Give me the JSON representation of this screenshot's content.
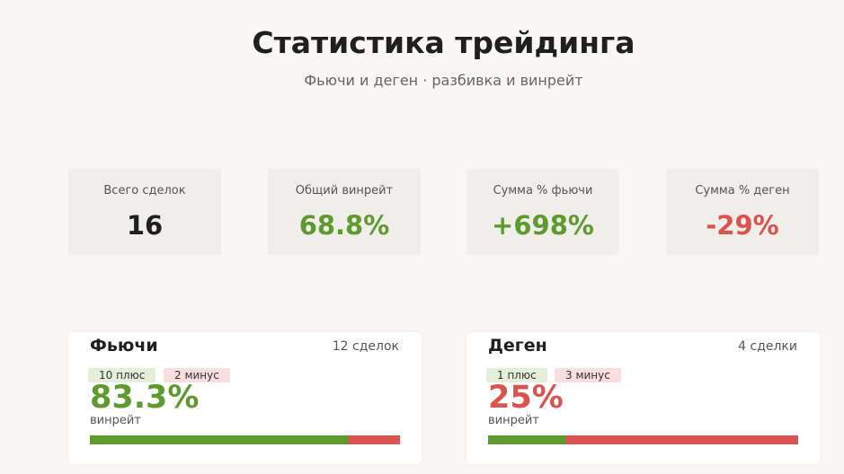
{
  "header": {
    "title": "Статистика трейдинга",
    "subtitle": "Фьючи и деген · разбивка и винрейт"
  },
  "stats": [
    {
      "label": "Всего сделок",
      "value": "16"
    },
    {
      "label": "Общий винрейт",
      "value": "68.8%"
    },
    {
      "label": "Сумма % фьючи",
      "value": "+698%"
    },
    {
      "label": "Сумма % деген",
      "value": "-29%"
    }
  ],
  "panels": [
    {
      "name": "Фьючи",
      "count": "12 сделок",
      "wins": {
        "value": 10,
        "label": "10 плюс"
      },
      "losses": {
        "value": 2,
        "label": "2 минус"
      },
      "winrate": "83.3%",
      "winrate_label": "винрейт"
    },
    {
      "name": "Деген",
      "count": "4 сделки",
      "wins": {
        "value": 1,
        "label": "1 плюс"
      },
      "losses": {
        "value": 3,
        "label": "3 минус"
      },
      "winrate": "25%",
      "winrate_label": "винрейт"
    }
  ]
}
